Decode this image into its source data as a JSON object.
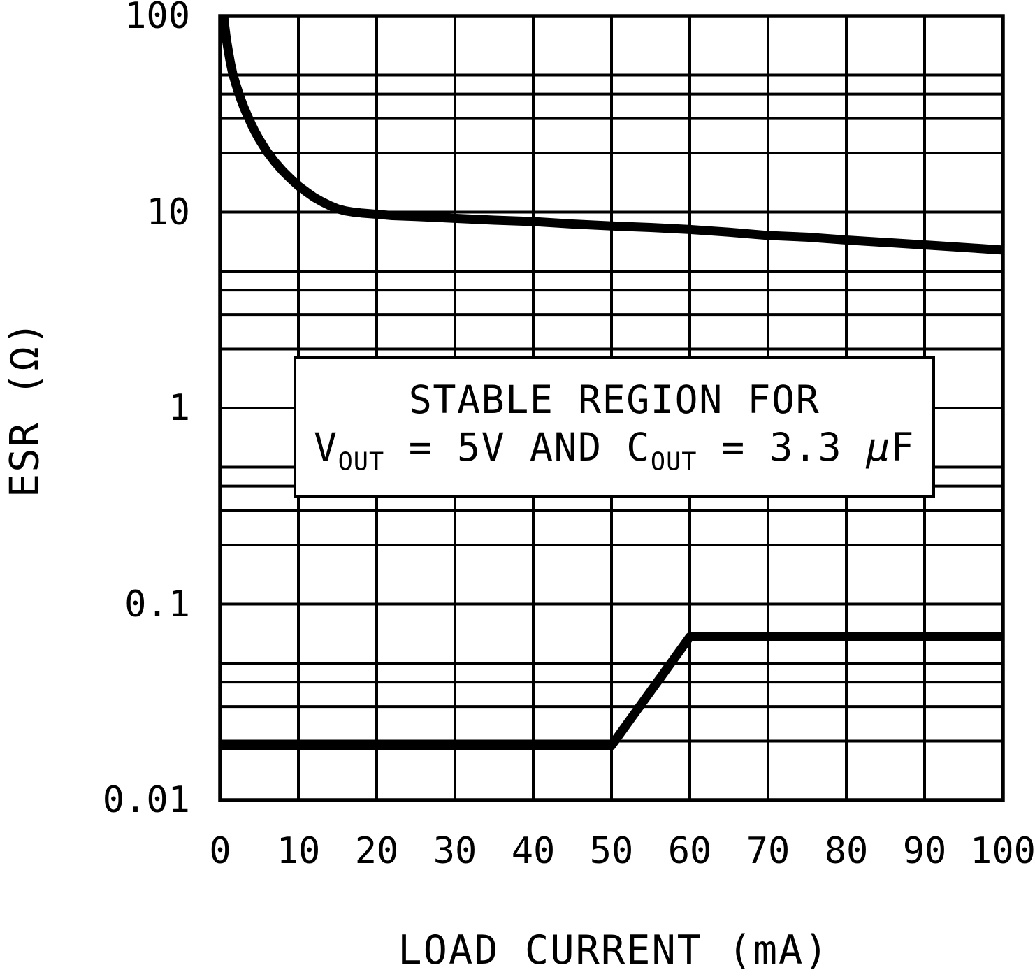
{
  "figure": {
    "background_color": "#ffffff",
    "ink_color": "#000000"
  },
  "chart_data": {
    "type": "line",
    "title": "",
    "xlabel": "LOAD CURRENT (mA)",
    "ylabel": "ESR (Ω)",
    "grid": true,
    "legend": "none",
    "x_axis": {
      "scale": "linear",
      "min": 0,
      "max": 100,
      "ticks": [
        0,
        10,
        20,
        30,
        40,
        50,
        60,
        70,
        80,
        90,
        100
      ],
      "tick_labels": [
        "0",
        "10",
        "20",
        "30",
        "40",
        "50",
        "60",
        "70",
        "80",
        "90",
        "100"
      ]
    },
    "y_axis": {
      "scale": "log",
      "min": 0.01,
      "max": 100,
      "ticks": [
        100,
        10,
        1,
        0.1,
        0.01
      ],
      "tick_labels": [
        "100",
        "10",
        "1",
        "0.1",
        "0.01"
      ],
      "minor_grid_multipliers": [
        2,
        3,
        4,
        5
      ]
    },
    "series": [
      {
        "name": "upper-esr-boundary",
        "points": [
          [
            0.45,
            100
          ],
          [
            0.6,
            88
          ],
          [
            0.8,
            76
          ],
          [
            1,
            68
          ],
          [
            1.3,
            58
          ],
          [
            1.6,
            51
          ],
          [
            2,
            45
          ],
          [
            2.5,
            39
          ],
          [
            3,
            34.5
          ],
          [
            3.5,
            31
          ],
          [
            4,
            28
          ],
          [
            4.5,
            25.5
          ],
          [
            5,
            23.5
          ],
          [
            6,
            20.3
          ],
          [
            7,
            18
          ],
          [
            8,
            16.2
          ],
          [
            9,
            14.8
          ],
          [
            10,
            13.6
          ],
          [
            11,
            12.7
          ],
          [
            12,
            11.9
          ],
          [
            13,
            11.3
          ],
          [
            14,
            10.8
          ],
          [
            15,
            10.4
          ],
          [
            16,
            10.15
          ],
          [
            17,
            10
          ],
          [
            18,
            9.9
          ],
          [
            20,
            9.75
          ],
          [
            22,
            9.6
          ],
          [
            25,
            9.5
          ],
          [
            30,
            9.3
          ],
          [
            35,
            9.1
          ],
          [
            40,
            8.95
          ],
          [
            45,
            8.7
          ],
          [
            50,
            8.5
          ],
          [
            55,
            8.35
          ],
          [
            60,
            8.15
          ],
          [
            65,
            7.9
          ],
          [
            70,
            7.6
          ],
          [
            75,
            7.45
          ],
          [
            80,
            7.2
          ],
          [
            85,
            7
          ],
          [
            90,
            6.8
          ],
          [
            95,
            6.6
          ],
          [
            100,
            6.4
          ]
        ]
      },
      {
        "name": "lower-esr-boundary",
        "points": [
          [
            0,
            0.019
          ],
          [
            50,
            0.019
          ],
          [
            60,
            0.068
          ],
          [
            100,
            0.068
          ]
        ]
      }
    ],
    "annotation": {
      "line1": "STABLE REGION FOR",
      "line2_plain": "VOUT = 5V AND COUT = 3.3 μF",
      "line2_segments": [
        {
          "text": "V"
        },
        {
          "sub": "OUT"
        },
        {
          "text": " = 5V AND C"
        },
        {
          "sub": "OUT"
        },
        {
          "text": " = 3.3 "
        },
        {
          "italic": "μ"
        },
        {
          "text": "F"
        }
      ]
    }
  }
}
